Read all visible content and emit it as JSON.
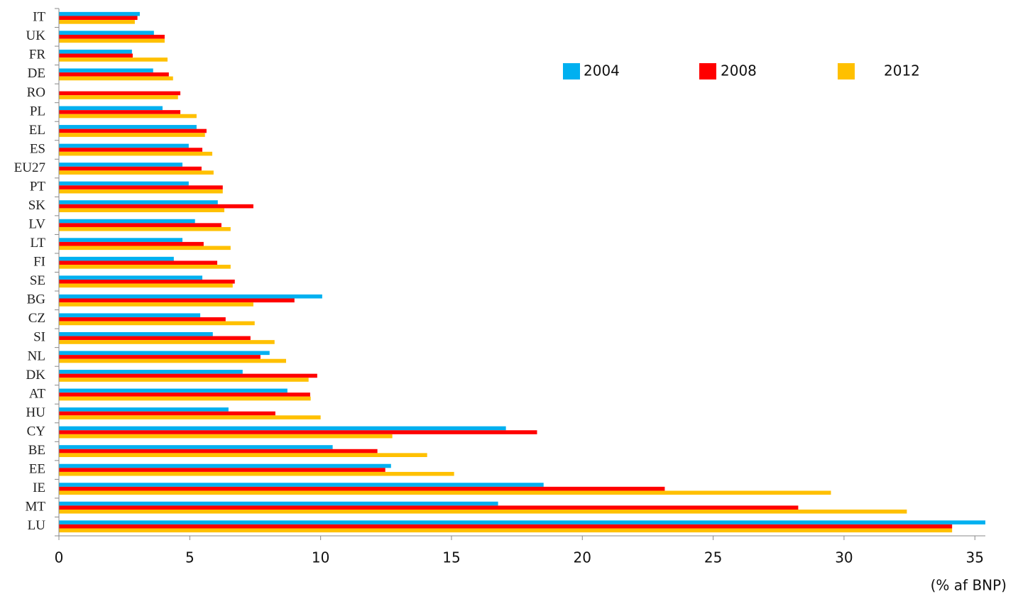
{
  "chart_data": {
    "type": "hbar",
    "categories": [
      "IT",
      "UK",
      "FR",
      "DE",
      "RO",
      "PL",
      "EL",
      "ES",
      "EU27",
      "PT",
      "SK",
      "LV",
      "LT",
      "FI",
      "SE",
      "BG",
      "CZ",
      "SI",
      "NL",
      "DK",
      "AT",
      "HU",
      "CY",
      "BE",
      "EE",
      "IE",
      "MT",
      "LU"
    ],
    "series": [
      {
        "name": "2004",
        "color": "#00b0f0",
        "values": [
          3.09,
          3.63,
          2.79,
          3.6,
          null,
          3.96,
          5.26,
          4.96,
          4.72,
          4.96,
          6.07,
          5.2,
          4.72,
          4.39,
          5.48,
          10.06,
          5.4,
          5.88,
          8.05,
          7.02,
          8.73,
          6.48,
          17.08,
          10.46,
          12.69,
          18.52,
          16.78,
          35.4
        ]
      },
      {
        "name": "2008",
        "color": "#ff0000",
        "values": [
          3.0,
          4.04,
          2.82,
          4.2,
          4.64,
          4.64,
          5.64,
          5.48,
          5.45,
          6.26,
          7.43,
          6.21,
          5.53,
          6.05,
          6.72,
          9.0,
          6.37,
          7.32,
          7.7,
          9.87,
          9.6,
          8.27,
          18.27,
          12.17,
          12.47,
          23.15,
          28.25,
          34.13
        ]
      },
      {
        "name": "2012",
        "color": "#ffc000",
        "values": [
          2.9,
          4.04,
          4.15,
          4.36,
          4.55,
          5.26,
          5.58,
          5.86,
          5.91,
          6.26,
          6.32,
          6.56,
          6.56,
          6.56,
          6.64,
          7.43,
          7.48,
          8.24,
          8.68,
          9.54,
          9.62,
          10.0,
          12.74,
          14.07,
          15.1,
          29.5,
          32.4,
          34.13
        ]
      }
    ],
    "xlabel": "(% af BNP)",
    "xlim": [
      0,
      35.4
    ],
    "xticks": [
      0,
      5,
      10,
      15,
      20,
      25,
      30,
      35
    ]
  }
}
